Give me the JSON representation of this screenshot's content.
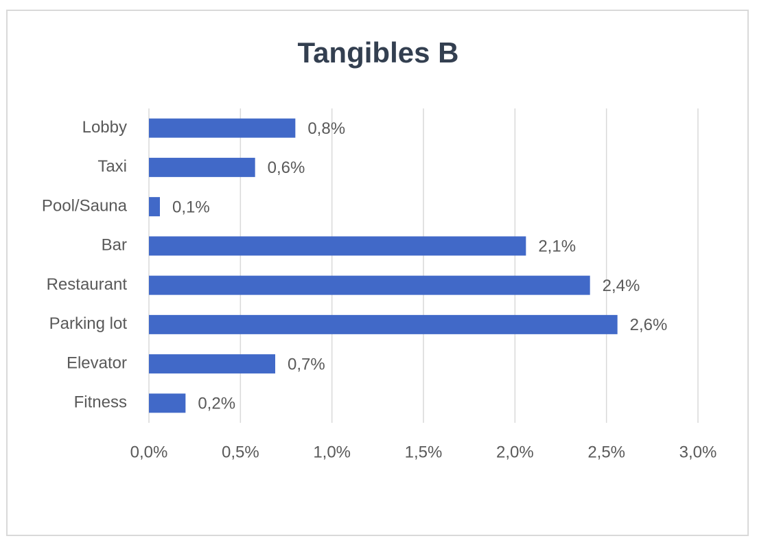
{
  "chart_data": {
    "type": "bar",
    "orientation": "horizontal",
    "title": "Tangibles B",
    "categories": [
      "Lobby",
      "Taxi",
      "Pool/Sauna",
      "Bar",
      "Restaurant",
      "Parking lot",
      "Elevator",
      "Fitness"
    ],
    "values": [
      0.8,
      0.58,
      0.06,
      2.06,
      2.41,
      2.56,
      0.69,
      0.2
    ],
    "value_labels": [
      "0,8%",
      "0,6%",
      "0,1%",
      "2,1%",
      "2,4%",
      "2,6%",
      "0,7%",
      "0,2%"
    ],
    "color": "#4169c8",
    "xlim": [
      0,
      3
    ],
    "xticks": [
      {
        "value": 0,
        "label": "0,0%"
      },
      {
        "value": 0.5,
        "label": "0,5%"
      },
      {
        "value": 1,
        "label": "1,0%"
      },
      {
        "value": 1.5,
        "label": "1,5%"
      },
      {
        "value": 2,
        "label": "2,0%"
      },
      {
        "value": 2.5,
        "label": "2,5%"
      },
      {
        "value": 3,
        "label": "3,0%"
      }
    ],
    "grid": true
  }
}
